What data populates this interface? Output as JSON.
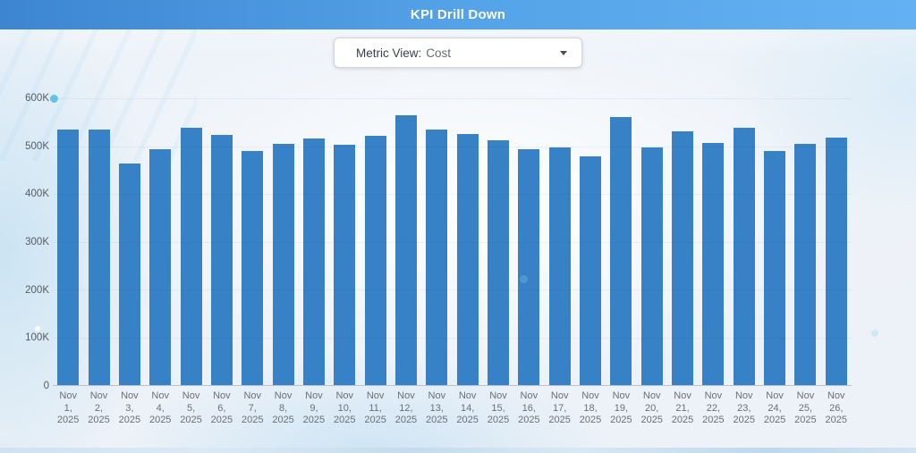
{
  "header": {
    "title": "KPI Drill Down",
    "gradient_left": "#3d85d1",
    "gradient_mid": "#55a3e8",
    "gradient_right": "#64b1f2"
  },
  "controls": {
    "metric_view_label": "Metric View:",
    "metric_view_value": "Cost",
    "dropdown_icon": "chevron-down"
  },
  "chart_data": {
    "type": "bar",
    "title": "",
    "xlabel": "",
    "ylabel": "",
    "categories": [
      "Nov 1, 2025",
      "Nov 2, 2025",
      "Nov 3, 2025",
      "Nov 4, 2025",
      "Nov 5, 2025",
      "Nov 6, 2025",
      "Nov 7, 2025",
      "Nov 8, 2025",
      "Nov 9, 2025",
      "Nov 10, 2025",
      "Nov 11, 2025",
      "Nov 12, 2025",
      "Nov 13, 2025",
      "Nov 14, 2025",
      "Nov 15, 2025",
      "Nov 16, 2025",
      "Nov 17, 2025",
      "Nov 18, 2025",
      "Nov 19, 2025",
      "Nov 20, 2025",
      "Nov 21, 2025",
      "Nov 22, 2025",
      "Nov 23, 2025",
      "Nov 24, 2025",
      "Nov 25, 2025",
      "Nov 26, 2025"
    ],
    "values": [
      534000,
      535000,
      464000,
      494000,
      538000,
      523000,
      489000,
      504000,
      516000,
      503000,
      522000,
      564000,
      534000,
      526000,
      513000,
      494000,
      497000,
      479000,
      560000,
      497000,
      530000,
      507000,
      539000,
      489000,
      505000,
      518000
    ],
    "ylim": [
      0,
      600000
    ],
    "yticks": [
      {
        "label": "0",
        "value": 0
      },
      {
        "label": "100K",
        "value": 100000
      },
      {
        "label": "200K",
        "value": 200000
      },
      {
        "label": "300K",
        "value": 300000
      },
      {
        "label": "400K",
        "value": 400000
      },
      {
        "label": "500K",
        "value": 500000
      },
      {
        "label": "600K",
        "value": 600000
      }
    ],
    "grid": "faint-horizontal",
    "legend": "none",
    "bar_color": "#3781c6",
    "axis_color": "#c6ccd4"
  }
}
